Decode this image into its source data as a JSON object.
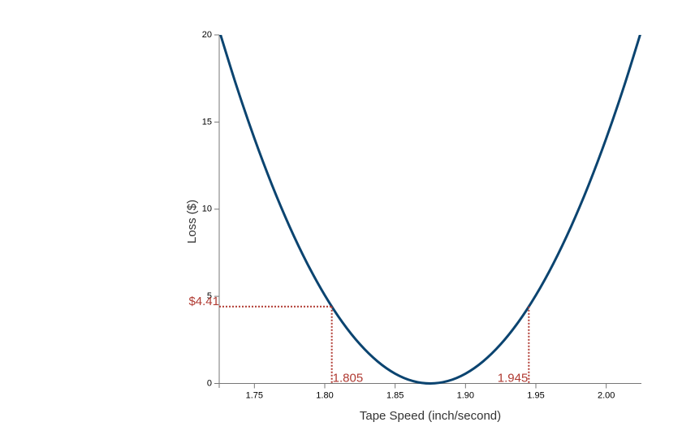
{
  "chart_data": {
    "type": "line",
    "x_label": "Tape Speed (inch/second)",
    "y_label": "Loss ($)",
    "x": [
      1.725,
      1.7375,
      1.75,
      1.7625,
      1.775,
      1.7875,
      1.8,
      1.8125,
      1.825,
      1.8375,
      1.85,
      1.8625,
      1.875,
      1.8875,
      1.9,
      1.9125,
      1.925,
      1.9375,
      1.95,
      1.9625,
      1.975,
      1.9875,
      2.0,
      2.0125,
      2.025
    ],
    "series": [
      {
        "color": "#0b4470",
        "values": [
          20.25,
          17.015625,
          14.0625,
          11.390625,
          9,
          6.890625,
          5.0625,
          3.515625,
          2.25,
          1.265625,
          0.5625,
          0.140625,
          0,
          0.140625,
          0.5625,
          1.265625,
          2.25,
          3.515625,
          5.0625,
          6.890625,
          9,
          11.390625,
          14.0625,
          17.015625,
          20.25
        ]
      }
    ],
    "spec_limits": [
      1.805,
      1.945
    ],
    "loss_at_limit": {
      "value": 4.41,
      "label": "$4.41"
    },
    "annotation_color": "#b03a32",
    "xlim": [
      1.725,
      2.025
    ],
    "ylim": [
      0,
      20
    ],
    "xticks": [
      1.75,
      {
        "value": 1.8,
        "label": "1.80"
      },
      1.85,
      {
        "value": 1.9,
        "label": "1.90"
      },
      1.95,
      {
        "value": 2.0,
        "label": "2.00"
      }
    ],
    "yticks": [
      0,
      5,
      10,
      15,
      20
    ],
    "grid": false
  }
}
